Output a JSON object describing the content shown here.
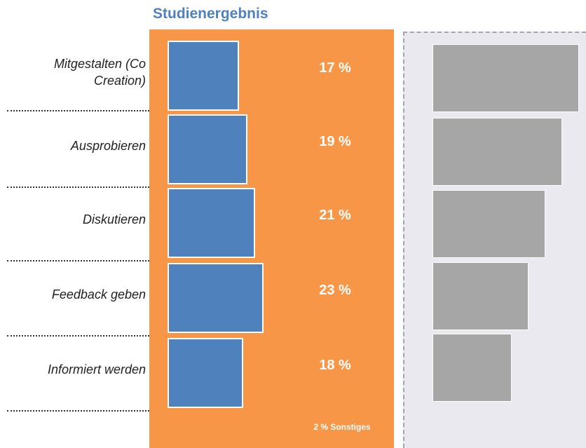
{
  "chart_data": {
    "type": "bar",
    "orientation": "horizontal",
    "title": "Studienergebnis",
    "categories": [
      "Mitgestalten (Co Creation)",
      "Ausprobieren",
      "Diskutieren",
      "Feedback geben",
      "Informiert werden"
    ],
    "values": [
      17,
      19,
      21,
      23,
      18
    ],
    "value_labels": [
      "17 %",
      "19 %",
      "21 %",
      "23 %",
      "18 %"
    ],
    "color": "#4f81bd",
    "annotation": "2 % Sonstiges"
  }
}
